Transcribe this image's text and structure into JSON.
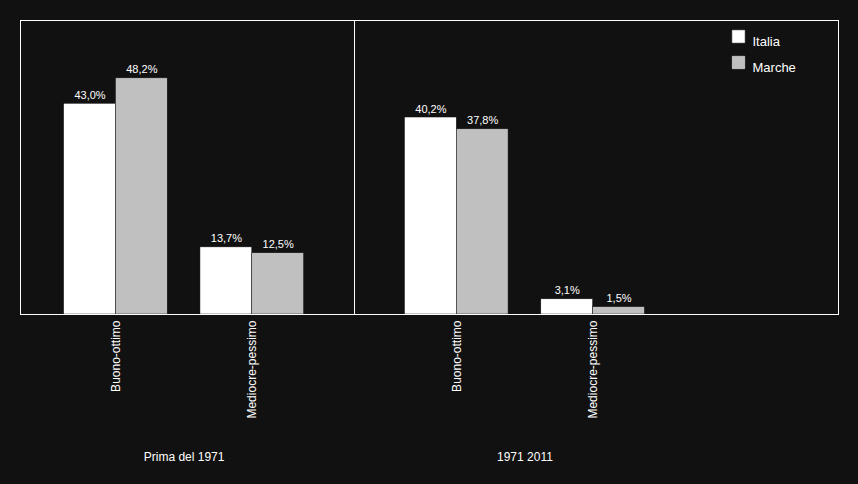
{
  "chart_data": {
    "type": "bar",
    "categories": [
      "Buono-ottimo",
      "Mediocre-pessimo",
      "Buono-ottimo",
      "Mediocre-pessimo"
    ],
    "category_groups": [
      "Prima del 1971",
      "Prima del 1971",
      "1971 2011",
      "1971 2011"
    ],
    "series": [
      {
        "name": "Italia",
        "color": "#ffffff",
        "values": [
          43.0,
          13.7,
          40.2,
          3.1
        ],
        "value_labels": [
          "43,0%",
          "13,7%",
          "40,2%",
          "3,1%"
        ]
      },
      {
        "name": "Marche",
        "color": "#c0c0c0",
        "values": [
          48.2,
          12.5,
          37.8,
          1.5
        ],
        "value_labels": [
          "48,2%",
          "12,5%",
          "37,8%",
          "1,5%"
        ]
      }
    ],
    "ylim": [
      0,
      60
    ],
    "data_labels": true,
    "tick_labels": "x",
    "legend": "upper right",
    "grid": false
  }
}
